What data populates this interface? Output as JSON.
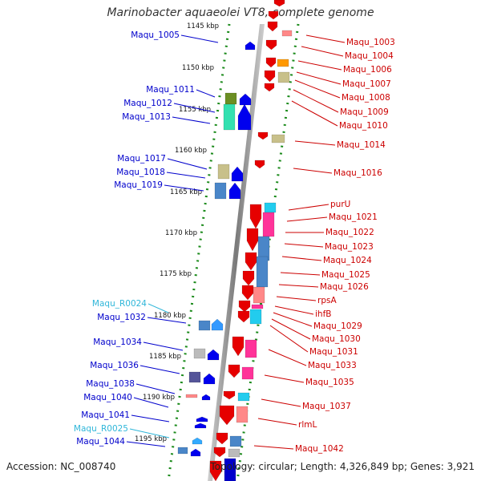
{
  "title": "Marinobacter aquaeolei VT8, complete genome",
  "footer": {
    "accession": "Accession: NC_008740",
    "summary": "Topology: circular; Length: 4,326,849 bp; Genes: 3,921"
  },
  "colors": {
    "left_label": "#0000cc",
    "left_rna_label": "#2fb6d9",
    "right_label": "#cc0000",
    "strand_dots": "#1a8a1a",
    "axis": "#999999"
  },
  "ticks": [
    "1145 kbp",
    "1150 kbp",
    "1155 kbp",
    "1160 kbp",
    "1165 kbp",
    "1170 kbp",
    "1175 kbp",
    "1180 kbp",
    "1185 kbp",
    "1190 kbp",
    "1195 kbp"
  ],
  "left_labels": [
    "Maqu_1005",
    "Maqu_1011",
    "Maqu_1012",
    "Maqu_1013",
    "Maqu_1017",
    "Maqu_1018",
    "Maqu_1019",
    "Maqu_R0024",
    "Maqu_1032",
    "Maqu_1034",
    "Maqu_1036",
    "Maqu_1038",
    "Maqu_1040",
    "Maqu_1041",
    "Maqu_R0025",
    "Maqu_1044"
  ],
  "right_labels": [
    "Maqu_1003",
    "Maqu_1004",
    "Maqu_1006",
    "Maqu_1007",
    "Maqu_1008",
    "Maqu_1009",
    "Maqu_1010",
    "Maqu_1014",
    "Maqu_1016",
    "purU",
    "Maqu_1021",
    "Maqu_1022",
    "Maqu_1023",
    "Maqu_1024",
    "Maqu_1025",
    "Maqu_1026",
    "rpsA",
    "ihfB",
    "Maqu_1029",
    "Maqu_1030",
    "Maqu_1031",
    "Maqu_1033",
    "Maqu_1035",
    "Maqu_1037",
    "rlmL",
    "Maqu_1042"
  ]
}
